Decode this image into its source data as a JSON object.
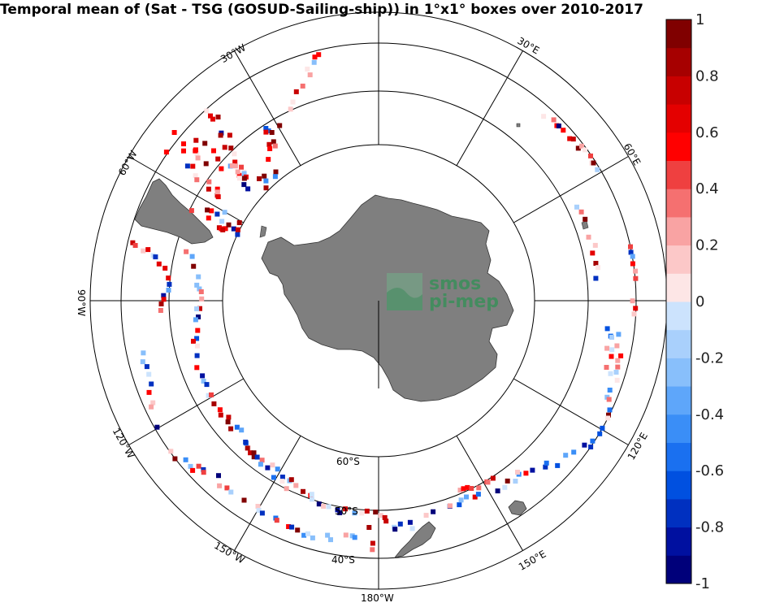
{
  "title": "Temporal mean of (Sat - TSG (GOSUD-Sailing-ship)) in 1°x1° boxes over 2010-2017",
  "logo": {
    "line1": "smos",
    "line2": "pi-mep",
    "color": "#3a8f5a"
  },
  "colorbar": {
    "ticks": [
      "1",
      "0.8",
      "0.6",
      "0.4",
      "0.2",
      "0",
      "-0.2",
      "-0.4",
      "-0.6",
      "-0.8",
      "-1"
    ],
    "min": -1,
    "max": 1,
    "step": 0.1,
    "colors": [
      "#00007a",
      "#0010a0",
      "#0030c0",
      "#0050e0",
      "#1a70f0",
      "#3a8ef7",
      "#5ea6fa",
      "#88bffb",
      "#a9d0fc",
      "#cce3fd",
      "#fde6e6",
      "#fcc8c8",
      "#f9a3a3",
      "#f57070",
      "#ef4040",
      "#ff0000",
      "#e40000",
      "#c80000",
      "#a60000",
      "#800000"
    ]
  },
  "map": {
    "projection": "south-polar-stereographic",
    "lat_labels": [
      "60°S",
      "50°S",
      "40°S"
    ],
    "lon_labels": [
      "30°W",
      "30°E",
      "60°W",
      "60°E",
      "90°W",
      "120°W",
      "120°E",
      "150°W",
      "150°E",
      "180°W"
    ],
    "land_color": "#7f7f7f",
    "tracks": [
      {
        "id": "drake-north",
        "sign": "mixed-red"
      },
      {
        "id": "drake-south",
        "sign": "mixed"
      },
      {
        "id": "south-atlantic",
        "sign": "red"
      },
      {
        "id": "indian-east",
        "sign": "red"
      },
      {
        "id": "tasman",
        "sign": "blue"
      },
      {
        "id": "pacific",
        "sign": "mixed"
      },
      {
        "id": "sw-pacific",
        "sign": "mixed-red"
      }
    ]
  }
}
